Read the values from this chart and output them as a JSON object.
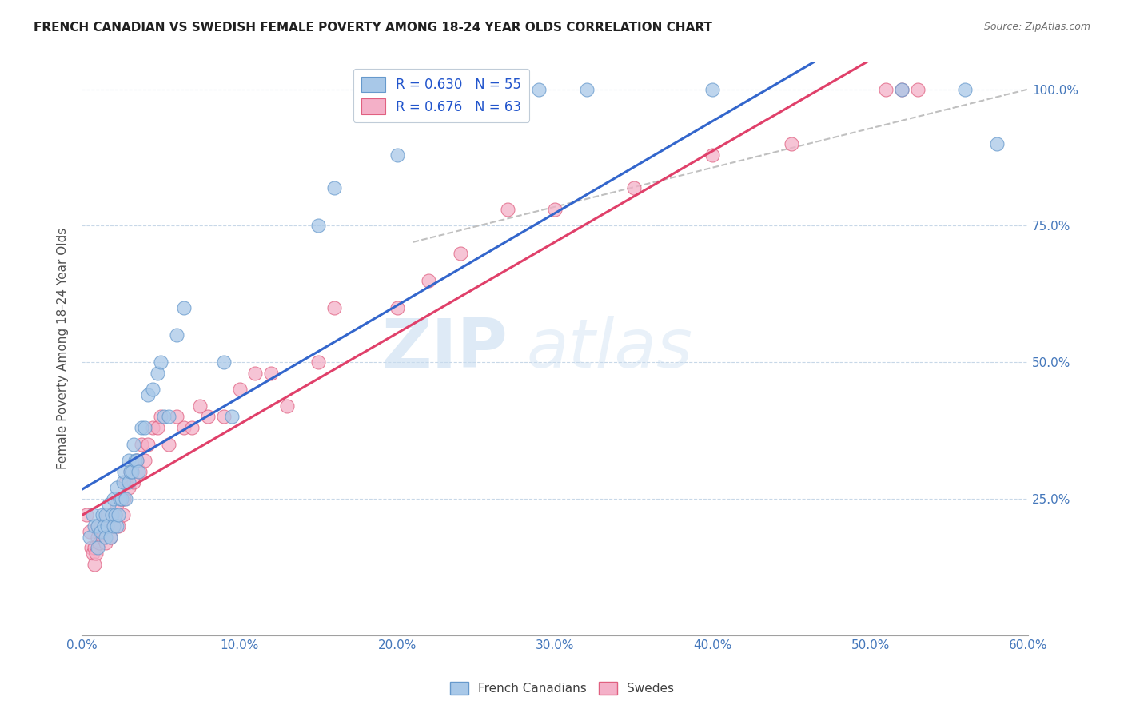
{
  "title": "FRENCH CANADIAN VS SWEDISH FEMALE POVERTY AMONG 18-24 YEAR OLDS CORRELATION CHART",
  "source": "Source: ZipAtlas.com",
  "ylabel_label": "Female Poverty Among 18-24 Year Olds",
  "xlim": [
    0.0,
    0.6
  ],
  "ylim": [
    0.0,
    1.05
  ],
  "legend_entries": [
    {
      "label": "R = 0.630   N = 55",
      "color": "#aac4e8"
    },
    {
      "label": "R = 0.676   N = 63",
      "color": "#f4b8c8"
    }
  ],
  "blue_color": "#a8c8e8",
  "pink_color": "#f4b0c8",
  "blue_edge_color": "#6699cc",
  "pink_edge_color": "#e06080",
  "blue_line_color": "#3366cc",
  "pink_line_color": "#e0406a",
  "watermark": "ZIPatlas",
  "blue_scatter": {
    "x": [
      0.005,
      0.007,
      0.008,
      0.01,
      0.01,
      0.012,
      0.013,
      0.014,
      0.015,
      0.015,
      0.016,
      0.017,
      0.018,
      0.019,
      0.02,
      0.02,
      0.021,
      0.022,
      0.022,
      0.023,
      0.024,
      0.025,
      0.026,
      0.027,
      0.028,
      0.03,
      0.03,
      0.031,
      0.032,
      0.033,
      0.034,
      0.035,
      0.036,
      0.038,
      0.04,
      0.042,
      0.045,
      0.048,
      0.05,
      0.052,
      0.055,
      0.06,
      0.065,
      0.09,
      0.095,
      0.15,
      0.16,
      0.2,
      0.27,
      0.29,
      0.32,
      0.4,
      0.52,
      0.56,
      0.58
    ],
    "y": [
      0.18,
      0.22,
      0.2,
      0.16,
      0.2,
      0.19,
      0.22,
      0.2,
      0.18,
      0.22,
      0.2,
      0.24,
      0.18,
      0.22,
      0.2,
      0.25,
      0.22,
      0.2,
      0.27,
      0.22,
      0.25,
      0.25,
      0.28,
      0.3,
      0.25,
      0.28,
      0.32,
      0.3,
      0.3,
      0.35,
      0.32,
      0.32,
      0.3,
      0.38,
      0.38,
      0.44,
      0.45,
      0.48,
      0.5,
      0.4,
      0.4,
      0.55,
      0.6,
      0.5,
      0.4,
      0.75,
      0.82,
      0.88,
      1.0,
      1.0,
      1.0,
      1.0,
      1.0,
      1.0,
      0.9
    ]
  },
  "pink_scatter": {
    "x": [
      0.003,
      0.005,
      0.006,
      0.007,
      0.008,
      0.008,
      0.009,
      0.01,
      0.01,
      0.011,
      0.012,
      0.013,
      0.014,
      0.015,
      0.015,
      0.016,
      0.017,
      0.018,
      0.019,
      0.02,
      0.021,
      0.022,
      0.023,
      0.025,
      0.026,
      0.027,
      0.028,
      0.03,
      0.031,
      0.032,
      0.033,
      0.035,
      0.037,
      0.038,
      0.04,
      0.042,
      0.045,
      0.048,
      0.05,
      0.055,
      0.06,
      0.065,
      0.07,
      0.075,
      0.08,
      0.09,
      0.1,
      0.11,
      0.12,
      0.13,
      0.15,
      0.16,
      0.2,
      0.22,
      0.24,
      0.27,
      0.3,
      0.35,
      0.4,
      0.45,
      0.51,
      0.52,
      0.53
    ],
    "y": [
      0.22,
      0.19,
      0.16,
      0.15,
      0.13,
      0.16,
      0.15,
      0.18,
      0.2,
      0.17,
      0.2,
      0.18,
      0.19,
      0.17,
      0.2,
      0.22,
      0.2,
      0.18,
      0.22,
      0.2,
      0.22,
      0.24,
      0.2,
      0.25,
      0.22,
      0.25,
      0.28,
      0.27,
      0.3,
      0.3,
      0.28,
      0.32,
      0.3,
      0.35,
      0.32,
      0.35,
      0.38,
      0.38,
      0.4,
      0.35,
      0.4,
      0.38,
      0.38,
      0.42,
      0.4,
      0.4,
      0.45,
      0.48,
      0.48,
      0.42,
      0.5,
      0.6,
      0.6,
      0.65,
      0.7,
      0.78,
      0.78,
      0.82,
      0.88,
      0.9,
      1.0,
      1.0,
      1.0
    ]
  },
  "ref_line": {
    "x": [
      0.21,
      0.6
    ],
    "y": [
      0.72,
      1.0
    ]
  }
}
